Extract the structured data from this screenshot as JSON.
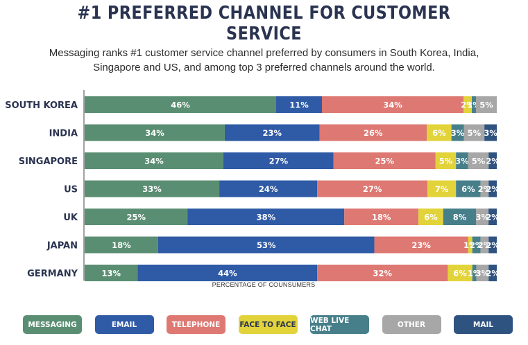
{
  "title": "#1 PREFERRED CHANNEL FOR CUSTOMER SERVICE",
  "subtitle": "Messaging ranks #1 customer service channel preferred by consumers in South Korea, India, Singapore and US, and among top 3 preferred channels around the world.",
  "colors": {
    "MESSAGING": "#5a8e72",
    "EMAIL": "#2e5aa6",
    "TELEPHONE": "#de7872",
    "FACE TO FACE": "#e2d33a",
    "WEB LIVE CHAT": "#467f8a",
    "OTHER": "#a7a7a7",
    "MAIL": "#2f5380"
  },
  "chart_data": {
    "type": "bar",
    "orientation": "horizontal",
    "stacked": true,
    "xlabel": "PERCENTAGE OF COUNSUMERS",
    "categories": [
      "SOUTH KOREA",
      "INDIA",
      "SINGAPORE",
      "US",
      "UK",
      "JAPAN",
      "GERMANY"
    ],
    "series": [
      {
        "name": "MESSAGING",
        "values": [
          46,
          34,
          34,
          33,
          25,
          18,
          13
        ],
        "labels": [
          "46%",
          "34%",
          "34%",
          "33%",
          "25%",
          "18%",
          "13%"
        ]
      },
      {
        "name": "EMAIL",
        "values": [
          11,
          23,
          27,
          24,
          38,
          53,
          44
        ],
        "labels": [
          "11%",
          "23%",
          "27%",
          "24%",
          "38%",
          "53%",
          "44%"
        ]
      },
      {
        "name": "TELEPHONE",
        "values": [
          34,
          26,
          25,
          27,
          18,
          23,
          32
        ],
        "labels": [
          "34%",
          "26%",
          "25%",
          "27%",
          "18%",
          "23%",
          "32%"
        ]
      },
      {
        "name": "FACE TO FACE",
        "values": [
          2,
          6,
          5,
          7,
          6,
          1,
          6
        ],
        "labels": [
          "2%",
          "6%",
          "5%",
          "7%",
          "6%",
          "1%",
          "6%"
        ]
      },
      {
        "name": "WEB LIVE CHAT",
        "values": [
          1,
          3,
          3,
          6,
          8,
          2,
          1
        ],
        "labels": [
          "1%",
          "3%",
          "3%",
          "6%",
          "8%",
          "2%",
          "1%"
        ]
      },
      {
        "name": "OTHER",
        "values": [
          5,
          5,
          5,
          2,
          3,
          2,
          3
        ],
        "labels": [
          "5%",
          "5%",
          "5%",
          "2%",
          "3%",
          "2%",
          "3%"
        ]
      },
      {
        "name": "MAIL",
        "values": [
          0,
          3,
          2,
          2,
          2,
          2,
          2
        ],
        "labels": [
          "",
          "3%",
          "2%",
          "2%",
          "2%",
          "2%",
          "2%"
        ]
      }
    ]
  },
  "legend": [
    "MESSAGING",
    "EMAIL",
    "TELEPHONE",
    "FACE TO FACE",
    "WEB LIVE CHAT",
    "OTHER",
    "MAIL"
  ]
}
